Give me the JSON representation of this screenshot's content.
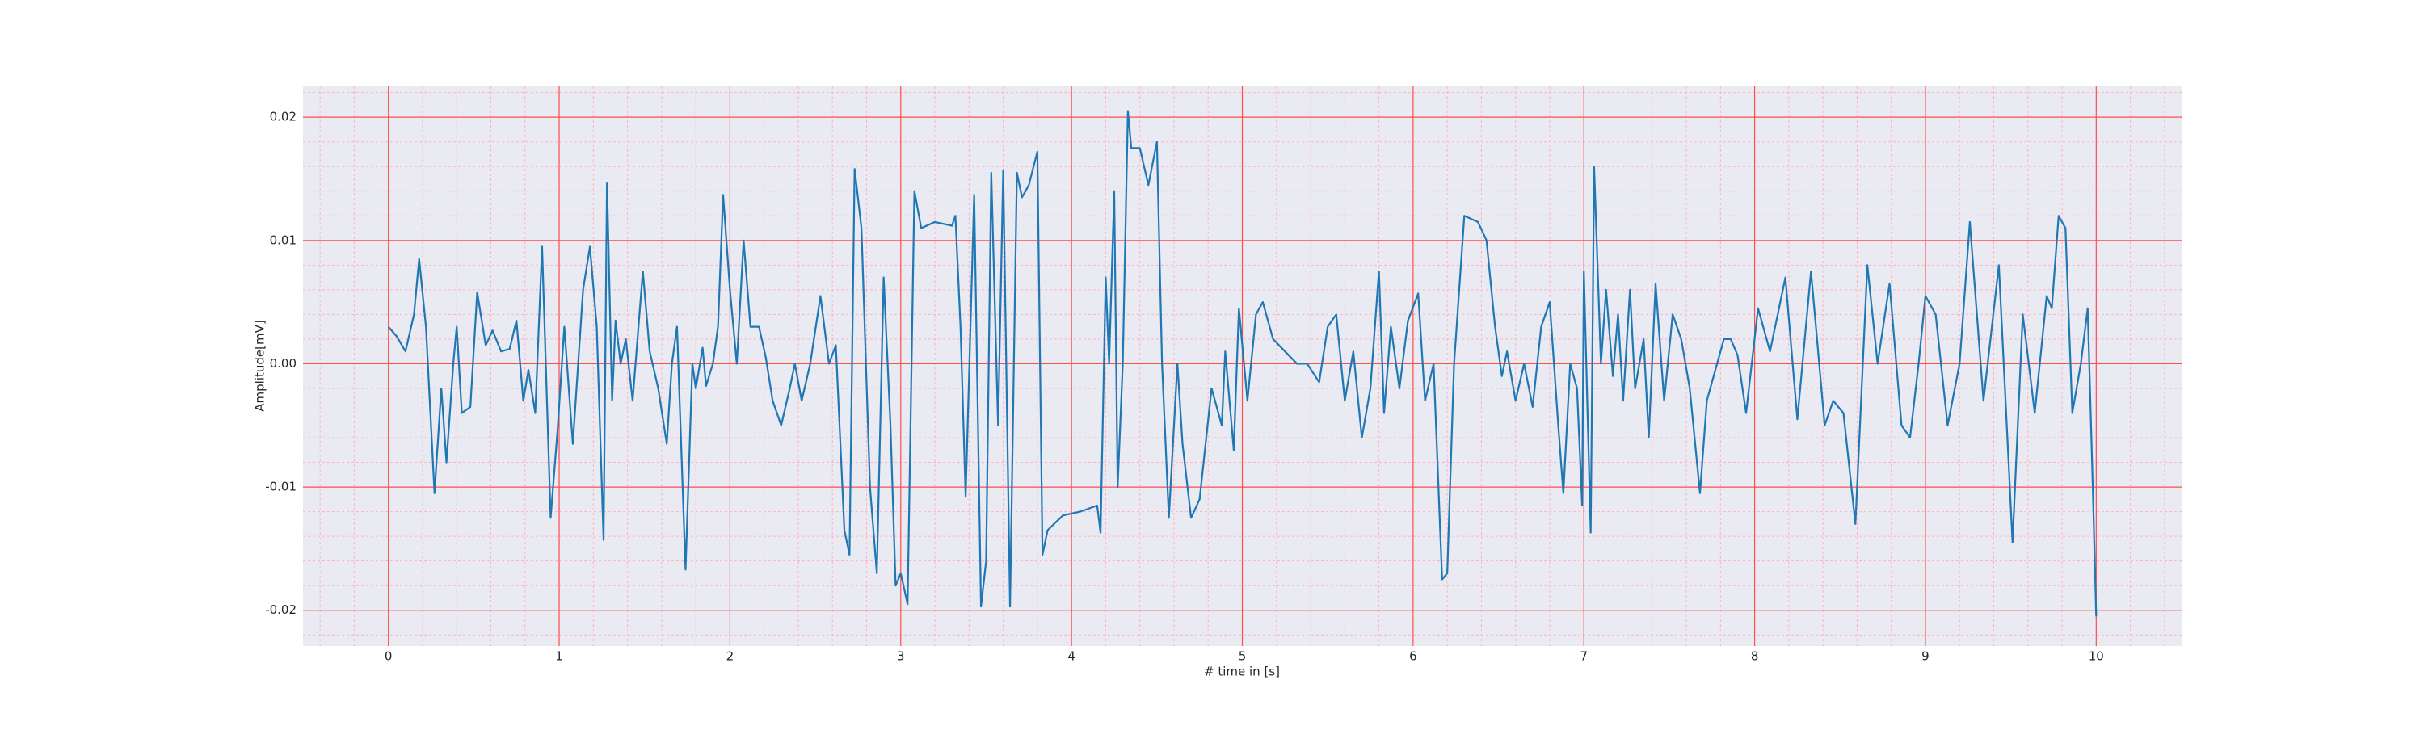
{
  "chart_data": {
    "type": "line",
    "x_label": "# time in [s]",
    "y_label": "Amplitude[mV]",
    "color": "#1f77b4",
    "background": "#eaeaf2",
    "grid": true,
    "major_grid_color": "#ff4d4d",
    "minor_grid_color": "#ffb3c1",
    "xlim": [
      -0.5,
      10.5
    ],
    "ylim": [
      -0.0229,
      0.0225
    ],
    "xticks": [
      0,
      1,
      2,
      3,
      4,
      5,
      6,
      7,
      8,
      9,
      10
    ],
    "yticks": [
      -0.02,
      -0.01,
      {
        "value": 0,
        "label": "0.00"
      },
      0.01,
      0.02
    ],
    "x_minor_ticks": [
      -0.4,
      -0.2,
      0.2,
      0.4,
      0.6,
      0.8,
      1.2,
      1.4,
      1.6,
      1.8,
      2.2,
      2.4,
      2.6,
      2.8,
      3.2,
      3.4,
      3.6,
      3.8,
      4.2,
      4.4,
      4.6,
      4.8,
      5.2,
      5.4,
      5.6,
      5.8,
      6.2,
      6.4,
      6.6,
      6.8,
      7.2,
      7.4,
      7.6,
      7.8,
      8.2,
      8.4,
      8.6,
      8.8,
      9.2,
      9.4,
      9.6,
      9.8,
      10.2,
      10.4
    ],
    "y_minor_ticks": [
      -0.022,
      -0.018,
      -0.016,
      -0.014,
      -0.012,
      -0.008,
      -0.006,
      -0.004,
      -0.002,
      0.002,
      0.004,
      0.006,
      0.008,
      0.012,
      0.014,
      0.016,
      0.018,
      0.022
    ],
    "x": [
      0,
      0.05,
      0.1,
      0.15,
      0.18,
      0.22,
      0.27,
      0.31,
      0.34,
      0.38,
      0.4,
      0.43,
      0.48,
      0.52,
      0.57,
      0.61,
      0.66,
      0.71,
      0.75,
      0.79,
      0.82,
      0.86,
      0.9,
      0.95,
      0.99,
      1.03,
      1.08,
      1.14,
      1.18,
      1.22,
      1.26,
      1.28,
      1.31,
      1.33,
      1.36,
      1.39,
      1.43,
      1.49,
      1.53,
      1.58,
      1.63,
      1.66,
      1.69,
      1.74,
      1.78,
      1.8,
      1.84,
      1.86,
      1.9,
      1.93,
      1.96,
      2.0,
      2.04,
      2.08,
      2.12,
      2.17,
      2.21,
      2.25,
      2.3,
      2.35,
      2.38,
      2.42,
      2.47,
      2.53,
      2.58,
      2.62,
      2.67,
      2.7,
      2.73,
      2.77,
      2.82,
      2.86,
      2.9,
      2.94,
      2.97,
      3.0,
      3.04,
      3.08,
      3.12,
      3.2,
      3.3,
      3.32,
      3.35,
      3.38,
      3.43,
      3.47,
      3.5,
      3.53,
      3.57,
      3.6,
      3.64,
      3.68,
      3.71,
      3.75,
      3.8,
      3.83,
      3.86,
      3.95,
      4.05,
      4.15,
      4.17,
      4.2,
      4.22,
      4.25,
      4.27,
      4.3,
      4.33,
      4.35,
      4.4,
      4.45,
      4.5,
      4.53,
      4.57,
      4.62,
      4.65,
      4.7,
      4.75,
      4.82,
      4.88,
      4.9,
      4.95,
      4.98,
      5.03,
      5.08,
      5.12,
      5.18,
      5.25,
      5.32,
      5.38,
      5.45,
      5.5,
      5.55,
      5.6,
      5.65,
      5.7,
      5.75,
      5.8,
      5.83,
      5.87,
      5.92,
      5.97,
      6.03,
      6.07,
      6.12,
      6.17,
      6.2,
      6.24,
      6.3,
      6.38,
      6.43,
      6.48,
      6.52,
      6.55,
      6.6,
      6.65,
      6.7,
      6.75,
      6.8,
      6.85,
      6.88,
      6.92,
      6.96,
      6.99,
      7.0,
      7.04,
      7.06,
      7.1,
      7.13,
      7.17,
      7.2,
      7.23,
      7.27,
      7.3,
      7.35,
      7.38,
      7.42,
      7.47,
      7.52,
      7.57,
      7.62,
      7.68,
      7.72,
      7.77,
      7.82,
      7.86,
      7.9,
      7.95,
      8.02,
      8.09,
      8.18,
      8.25,
      8.33,
      8.41,
      8.46,
      8.52,
      8.59,
      8.66,
      8.72,
      8.79,
      8.86,
      8.91,
      8.96,
      9.0,
      9.06,
      9.13,
      9.2,
      9.26,
      9.34,
      9.43,
      9.51,
      9.57,
      9.64,
      9.71,
      9.74,
      9.78,
      9.82,
      9.86,
      9.91,
      9.95,
      9.98,
      10.0
    ],
    "values": [
      0.003,
      0.0022,
      0.001,
      0.004,
      0.0085,
      0.003,
      -0.0105,
      -0.002,
      -0.008,
      0.0,
      0.003,
      -0.004,
      -0.0035,
      0.0058,
      0.0015,
      0.0027,
      0.001,
      0.0012,
      0.0035,
      -0.003,
      -0.0005,
      -0.004,
      0.0095,
      -0.0125,
      -0.0055,
      0.003,
      -0.0065,
      0.006,
      0.0095,
      0.003,
      -0.0143,
      0.0147,
      -0.003,
      0.0035,
      0.0,
      0.002,
      -0.003,
      0.0075,
      0.001,
      -0.002,
      -0.0065,
      0.0,
      0.003,
      -0.0167,
      0.0,
      -0.002,
      0.0013,
      -0.0018,
      0.0,
      0.003,
      0.0137,
      0.006,
      0.0,
      0.01,
      0.003,
      0.003,
      0.0005,
      -0.003,
      -0.005,
      -0.002,
      0.0,
      -0.003,
      0.0,
      0.0055,
      0.0,
      0.0015,
      -0.0135,
      -0.0155,
      0.0158,
      0.011,
      -0.01,
      -0.017,
      0.007,
      -0.005,
      -0.018,
      -0.017,
      -0.0195,
      0.014,
      0.011,
      0.0115,
      0.0112,
      0.012,
      0.003,
      -0.0108,
      0.0137,
      -0.0197,
      -0.016,
      0.0155,
      -0.005,
      0.0157,
      -0.0197,
      0.0155,
      0.0135,
      0.0145,
      0.0172,
      -0.0155,
      -0.0135,
      -0.0123,
      -0.012,
      -0.0115,
      -0.0137,
      0.007,
      0.0,
      0.014,
      -0.01,
      0.0,
      0.0205,
      0.0175,
      0.0175,
      0.0145,
      0.018,
      0.0,
      -0.0125,
      0.0,
      -0.0065,
      -0.0125,
      -0.011,
      -0.002,
      -0.005,
      0.001,
      -0.007,
      0.0045,
      -0.003,
      0.004,
      0.005,
      0.002,
      0.001,
      0.0,
      0.0,
      -0.0015,
      0.003,
      0.004,
      -0.003,
      0.001,
      -0.006,
      -0.002,
      0.0075,
      -0.004,
      0.003,
      -0.002,
      0.0035,
      0.0057,
      -0.003,
      0.0,
      -0.0175,
      -0.017,
      0.0,
      0.012,
      0.0115,
      0.01,
      0.003,
      -0.001,
      0.001,
      -0.003,
      0.0,
      -0.0035,
      0.003,
      0.005,
      -0.005,
      -0.0105,
      0.0,
      -0.002,
      -0.0115,
      0.0075,
      -0.0137,
      0.016,
      0.0,
      0.006,
      -0.001,
      0.004,
      -0.003,
      0.006,
      -0.002,
      0.002,
      -0.006,
      0.0065,
      -0.003,
      0.004,
      0.002,
      -0.002,
      -0.0105,
      -0.003,
      -0.0005,
      0.002,
      0.002,
      0.0007,
      -0.004,
      0.0045,
      0.001,
      0.007,
      -0.0045,
      0.0075,
      -0.005,
      -0.003,
      -0.004,
      -0.013,
      0.008,
      0.0,
      0.0065,
      -0.005,
      -0.006,
      0.0,
      0.0055,
      0.004,
      -0.005,
      0.0,
      0.0115,
      -0.003,
      0.008,
      -0.0145,
      0.004,
      -0.004,
      0.0055,
      0.0045,
      0.012,
      0.011,
      -0.004,
      0.0,
      0.0045,
      -0.01,
      -0.0205
    ]
  }
}
